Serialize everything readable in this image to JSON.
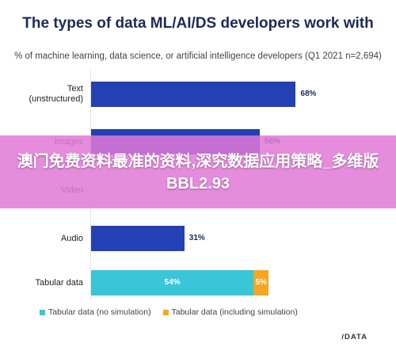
{
  "header": {
    "title": "The types of data ML/AI/DS developers work with",
    "subtitle": "% of machine learning, data science, or artificial intelligence developers (Q1 2021 n=2,694)"
  },
  "chart_data": {
    "type": "bar",
    "orientation": "horizontal",
    "categories": [
      "Text (unstructured)",
      "Images",
      "Video",
      "Audio",
      "Tabular data"
    ],
    "series": [
      {
        "name": "Tabular data (no simulation)",
        "values": [
          68,
          56,
          null,
          31,
          54
        ],
        "color": "#2440b5"
      },
      {
        "name": "Tabular data (including simulation)",
        "values": [
          null,
          null,
          null,
          null,
          5
        ],
        "color": "#f5a623"
      }
    ],
    "value_labels": [
      "68%",
      "56%",
      "",
      "31%",
      "54%",
      "5%"
    ],
    "tabular_color": "#38c6d8",
    "legend_position": "bottom-left"
  },
  "legend": {
    "items": [
      {
        "label": "Tabular data (no simulation)",
        "color": "#38c6d8"
      },
      {
        "label": "Tabular data (including simulation)",
        "color": "#f5a623"
      }
    ]
  },
  "logo": {
    "text": "/DATA"
  },
  "overlay": {
    "text": "澳门免费资料最准的资料,深究数据应用策略_多维版BBL2.93"
  }
}
